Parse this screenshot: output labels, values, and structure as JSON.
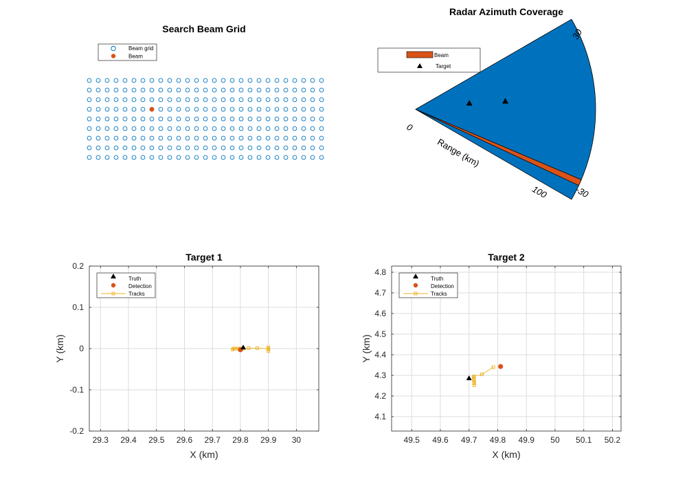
{
  "chart_data": [
    {
      "id": "beamgrid",
      "type": "scatter",
      "title": "Search Beam Grid",
      "legend": [
        "Beam grid",
        "Beam"
      ],
      "grid_columns": 27,
      "grid_rows": 9,
      "beam_column": 7,
      "beam_row": 3,
      "colors": {
        "grid": "#0072bd",
        "beam": "#d95319"
      }
    },
    {
      "id": "polar",
      "type": "area",
      "title": "Radar Azimuth Coverage",
      "legend": [
        "Beam",
        "Target"
      ],
      "az_limits": [
        -30,
        30
      ],
      "range_max": 100,
      "beam_az": [
        -25,
        -23
      ],
      "targets": [
        {
          "az": 6.2,
          "range": 30
        },
        {
          "az": 5.0,
          "range": 50
        }
      ],
      "labels": {
        "az_max": "30",
        "az_min": "-30",
        "r_min": "0",
        "r_max": "100",
        "range_label": "Range (km)"
      },
      "colors": {
        "coverage": "#0072bd",
        "beam": "#d95319",
        "target": "#000000"
      }
    },
    {
      "id": "target1",
      "type": "line",
      "title": "Target 1",
      "xlabel": "X (km)",
      "ylabel": "Y (km)",
      "xlim": [
        29.26,
        30.08
      ],
      "ylim": [
        -0.2,
        0.2
      ],
      "xticks": [
        "29.3",
        "29.4",
        "29.5",
        "29.6",
        "29.7",
        "29.8",
        "29.9",
        "30"
      ],
      "yticks": [
        "0.2",
        "0.1",
        "0",
        "-0.1",
        "-0.2"
      ],
      "legend": [
        "Truth",
        "Detection",
        "Tracks"
      ],
      "truth": [
        {
          "x": 29.81,
          "y": 0.002
        }
      ],
      "detection": [
        {
          "x": 29.8,
          "y": -0.003
        }
      ],
      "tracks": [
        {
          "x": 29.772,
          "y": -0.002
        },
        {
          "x": 29.776,
          "y": 0.0
        },
        {
          "x": 29.78,
          "y": 0.0
        },
        {
          "x": 29.785,
          "y": 0.0
        },
        {
          "x": 29.79,
          "y": 0.0
        },
        {
          "x": 29.795,
          "y": 0.0
        },
        {
          "x": 29.8,
          "y": 0.0
        },
        {
          "x": 29.81,
          "y": 0.0
        },
        {
          "x": 29.83,
          "y": 0.001
        },
        {
          "x": 29.86,
          "y": 0.001
        },
        {
          "x": 29.9,
          "y": 0.0
        },
        {
          "x": 29.9,
          "y": 0.003
        },
        {
          "x": 29.9,
          "y": -0.002
        },
        {
          "x": 29.9,
          "y": -0.006
        }
      ],
      "colors": {
        "truth": "#000000",
        "detection": "#d95319",
        "tracks": "#edb120"
      }
    },
    {
      "id": "target2",
      "type": "line",
      "title": "Target 2",
      "xlabel": "X (km)",
      "ylabel": "Y (km)",
      "xlim": [
        49.43,
        50.23
      ],
      "ylim": [
        4.03,
        4.83
      ],
      "xticks": [
        "49.5",
        "49.6",
        "49.7",
        "49.8",
        "49.9",
        "50",
        "50.1",
        "50.2"
      ],
      "yticks": [
        "4.8",
        "4.7",
        "4.6",
        "4.5",
        "4.4",
        "4.3",
        "4.2",
        "4.1"
      ],
      "legend": [
        "Truth",
        "Detection",
        "Tracks"
      ],
      "truth": [
        {
          "x": 49.7,
          "y": 4.285
        }
      ],
      "detection": [
        {
          "x": 49.81,
          "y": 4.343
        }
      ],
      "tracks": [
        {
          "x": 49.718,
          "y": 4.252
        },
        {
          "x": 49.718,
          "y": 4.262
        },
        {
          "x": 49.718,
          "y": 4.27
        },
        {
          "x": 49.717,
          "y": 4.277
        },
        {
          "x": 49.717,
          "y": 4.283
        },
        {
          "x": 49.716,
          "y": 4.29
        },
        {
          "x": 49.717,
          "y": 4.295
        },
        {
          "x": 49.745,
          "y": 4.305
        },
        {
          "x": 49.785,
          "y": 4.34
        }
      ],
      "colors": {
        "truth": "#000000",
        "detection": "#d95319",
        "tracks": "#edb120"
      }
    }
  ]
}
